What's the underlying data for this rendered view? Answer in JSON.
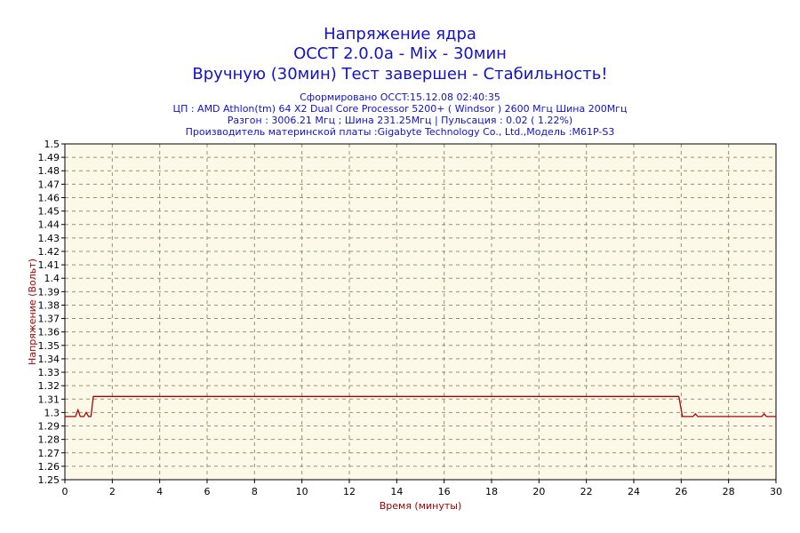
{
  "titles": [
    "Напряжение ядра",
    "OCCT 2.0.0a - Mix - 30мин",
    "Вручную (30мин) Тест завершен - Стабильность!"
  ],
  "info": [
    "Сформировано OCCT:15.12.08 02:40:35",
    "ЦП : AMD Athlon(tm) 64 X2 Dual Core Processor 5200+ ( Windsor ) 2600 Мгц Шина 200Мгц",
    "Разгон : 3006.21 Мгц ; Шина 231.25Мгц | Пульсация : 0.02 ( 1.22%)",
    "Производитель материнской платы :Gigabyte Technology Co., Ltd.,Модель :M61P-S3"
  ],
  "colors": {
    "title": "#1212c8",
    "axis_label": "#a00000",
    "series": "#b00000",
    "plot_bg": "#fdf9e8",
    "grid": "#9a9070"
  },
  "chart_data": {
    "type": "line",
    "xlabel": "Время (минуты)",
    "ylabel": "Напряжение (Вольт)",
    "xlim": [
      0,
      30
    ],
    "ylim": [
      1.25,
      1.5
    ],
    "xticks": [
      0,
      2,
      4,
      6,
      8,
      10,
      12,
      14,
      16,
      18,
      20,
      22,
      24,
      26,
      28,
      30
    ],
    "yticks": [
      1.25,
      1.26,
      1.27,
      1.28,
      1.29,
      1.3,
      1.31,
      1.32,
      1.33,
      1.34,
      1.35,
      1.36,
      1.37,
      1.38,
      1.39,
      1.4,
      1.41,
      1.42,
      1.43,
      1.44,
      1.45,
      1.46,
      1.47,
      1.48,
      1.49,
      1.5
    ],
    "grid": true,
    "series": [
      {
        "x": [
          0,
          0.45,
          0.55,
          0.65,
          0.8,
          0.9,
          1.0,
          1.1,
          1.2,
          1.25,
          25.9,
          26.05,
          26.2,
          26.5,
          26.6,
          26.7,
          29.4,
          29.5,
          29.6,
          30
        ],
        "y": [
          1.297,
          1.297,
          1.302,
          1.297,
          1.297,
          1.3,
          1.297,
          1.297,
          1.312,
          1.312,
          1.312,
          1.297,
          1.297,
          1.297,
          1.299,
          1.297,
          1.297,
          1.299,
          1.297,
          1.297
        ]
      }
    ]
  }
}
